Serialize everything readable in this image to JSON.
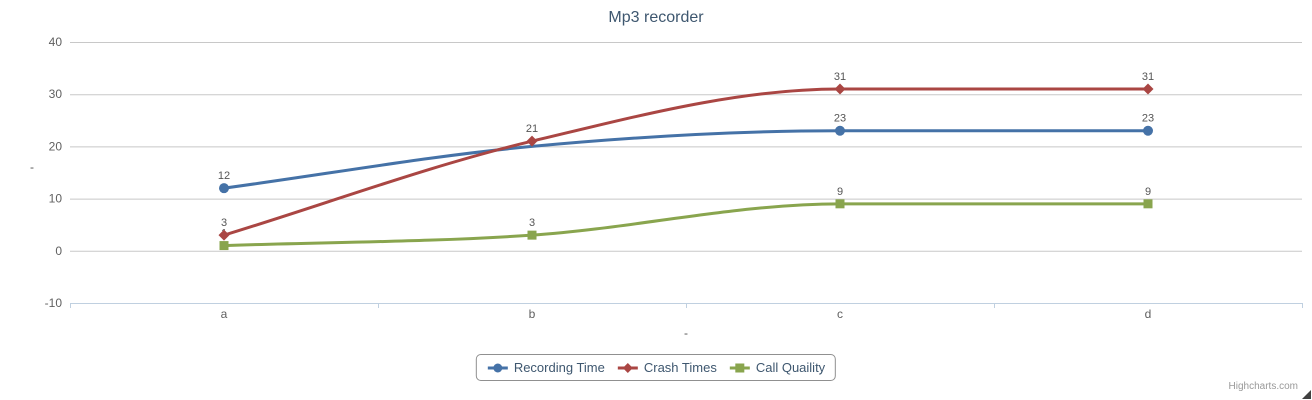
{
  "chart_data": {
    "type": "line",
    "line_shape": "spline",
    "title": "Mp3 recorder",
    "xlabel": "-",
    "ylabel": "-",
    "categories": [
      "a",
      "b",
      "c",
      "d"
    ],
    "ylim": [
      -10,
      40
    ],
    "yticks": [
      -10,
      0,
      10,
      20,
      30,
      40
    ],
    "grid": true,
    "legend_position": "bottom-center",
    "series": [
      {
        "name": "Recording Time",
        "color": "#4572A7",
        "marker": "circle",
        "values": [
          12,
          20,
          23,
          23
        ],
        "hidden_points": [
          1
        ]
      },
      {
        "name": "Crash Times",
        "color": "#AA4643",
        "marker": "diamond",
        "values": [
          3,
          21,
          31,
          31
        ],
        "hidden_points": []
      },
      {
        "name": "Call Quaility",
        "color": "#89A54E",
        "marker": "square",
        "values": [
          1,
          3,
          9,
          9
        ],
        "hidden_points": []
      }
    ]
  },
  "colors": {
    "title": "#3E576F",
    "axis_label": "#606060",
    "axis_title": "#555555",
    "axis_line": "#C0D0E0",
    "grid": "#C8C8C8",
    "data_label": "#555555",
    "legend_text": "#3E576F",
    "legend_border": "#909090",
    "credit": "#999999"
  },
  "credit": {
    "label": "Highcharts.com"
  }
}
